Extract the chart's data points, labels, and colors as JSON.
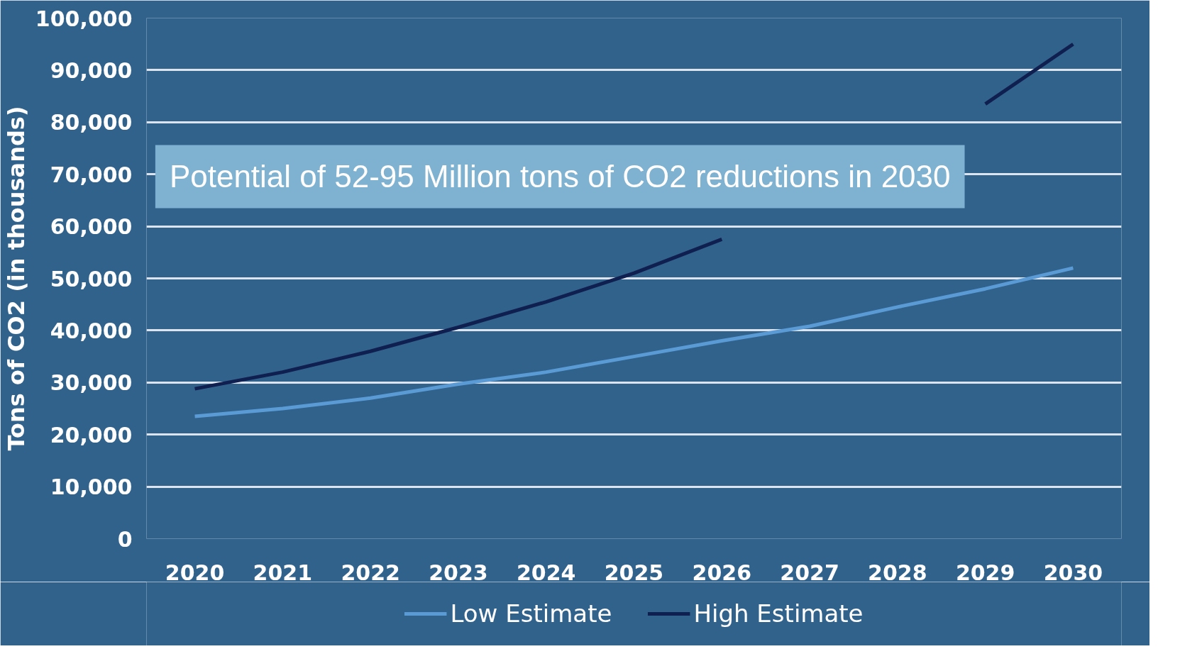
{
  "chart_data": {
    "type": "line",
    "ylabel": "Tons of CO2 (in thousands)",
    "categories": [
      "2020",
      "2021",
      "2022",
      "2023",
      "2024",
      "2025",
      "2026",
      "2027",
      "2028",
      "2029",
      "2030"
    ],
    "series": [
      {
        "name": "Low Estimate",
        "color": "#5b9bd5",
        "values": [
          23500,
          25000,
          27000,
          29700,
          32000,
          35000,
          38000,
          40800,
          44500,
          48000,
          52000
        ]
      },
      {
        "name": "High Estimate",
        "color": "#0f1f4f",
        "values": [
          28800,
          32000,
          36000,
          40600,
          45500,
          51000,
          57500,
          null,
          null,
          83500,
          95000
        ]
      }
    ],
    "ylim": [
      0,
      100000
    ],
    "yticks": [
      {
        "value": 0,
        "label": "0"
      },
      {
        "value": 10000,
        "label": "10,000"
      },
      {
        "value": 20000,
        "label": "20,000"
      },
      {
        "value": 30000,
        "label": "30,000"
      },
      {
        "value": 40000,
        "label": "40,000"
      },
      {
        "value": 50000,
        "label": "50,000"
      },
      {
        "value": 60000,
        "label": "60,000"
      },
      {
        "value": 70000,
        "label": "70,000"
      },
      {
        "value": 80000,
        "label": "80,000"
      },
      {
        "value": 90000,
        "label": "90,000"
      },
      {
        "value": 100000,
        "label": "100,000"
      }
    ],
    "grid": "y",
    "legend": "bottom",
    "marker": "none",
    "line_style": "solid",
    "annotations": [
      "Potential of 52-95 Million tons of CO2 reductions in 2030"
    ]
  }
}
